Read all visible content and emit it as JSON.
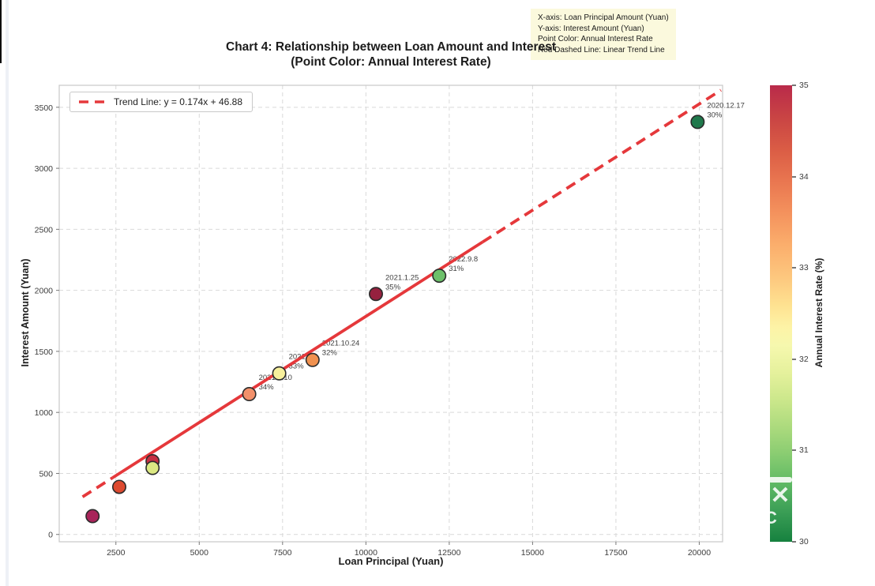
{
  "title": {
    "line1": "Chart 4: Relationship between Loan Amount and Interest",
    "line2": "(Point Color: Annual Interest Rate)"
  },
  "info_box": {
    "lines": [
      "X-axis: Loan Principal Amount (Yuan)",
      "Y-axis: Interest Amount (Yuan)",
      "Point Color: Annual Interest Rate",
      "Red Dashed Line: Linear Trend Line"
    ],
    "bg_color": "#fbf9dd"
  },
  "legend": {
    "label": "Trend Line: y = 0.174x + 46.88",
    "line_color": "#e5383b"
  },
  "watermark": {
    "x_glyph": "✕",
    "c_glyph": "C"
  },
  "chart_data": {
    "type": "scatter",
    "title": "Chart 4: Relationship between Loan Amount and Interest (Point Color: Annual Interest Rate)",
    "xlabel": "Loan Principal (Yuan)",
    "ylabel": "Interest Amount (Yuan)",
    "xlim": [
      800,
      20700
    ],
    "ylim": [
      -60,
      3680
    ],
    "x_ticks": [
      2500,
      5000,
      7500,
      10000,
      12500,
      15000,
      17500,
      20000
    ],
    "y_ticks": [
      0,
      500,
      1000,
      1500,
      2000,
      2500,
      3000,
      3500
    ],
    "grid": true,
    "grid_color": "#d9d9d9",
    "points": [
      {
        "principal": 1800,
        "interest": 150,
        "color": "#a8245a",
        "date": null,
        "rate": null
      },
      {
        "principal": 2600,
        "interest": 390,
        "color": "#dd4a30",
        "date": null,
        "rate": null
      },
      {
        "principal": 3600,
        "interest": 600,
        "color": "#c53043",
        "date": null,
        "rate": null
      },
      {
        "principal": 3600,
        "interest": 545,
        "color": "#dce983",
        "date": null,
        "rate": null
      },
      {
        "principal": 6500,
        "interest": 1150,
        "color": "#f2906a",
        "date": "2021.1.10",
        "rate": "34%"
      },
      {
        "principal": 7400,
        "interest": 1320,
        "color": "#f7f09c",
        "date": "2021.2.9",
        "rate": "33%"
      },
      {
        "principal": 8400,
        "interest": 1430,
        "color": "#f0914f",
        "date": "2021.10.24",
        "rate": "32%"
      },
      {
        "principal": 10300,
        "interest": 1970,
        "color": "#96213f",
        "date": "2021.1.25",
        "rate": "35%"
      },
      {
        "principal": 12200,
        "interest": 2120,
        "color": "#6cc06a",
        "date": "2022.9.8",
        "rate": "31%"
      },
      {
        "principal": 19950,
        "interest": 3380,
        "color": "#20794c",
        "date": "2020.12.17",
        "rate": "30%"
      }
    ],
    "trend": {
      "slope": 0.174,
      "intercept": 46.88,
      "label": "Trend Line: y = 0.174x + 46.88",
      "color": "#e5383b",
      "x_range": [
        1500,
        20650
      ],
      "solid_range": [
        2400,
        13500
      ]
    },
    "colorbar": {
      "label": "Annual Interest Rate (%)",
      "ticks": [
        30,
        31,
        32,
        33,
        34,
        35
      ],
      "vmin": 30,
      "vmax": 35,
      "cmap": "RdYlGn_r"
    }
  }
}
